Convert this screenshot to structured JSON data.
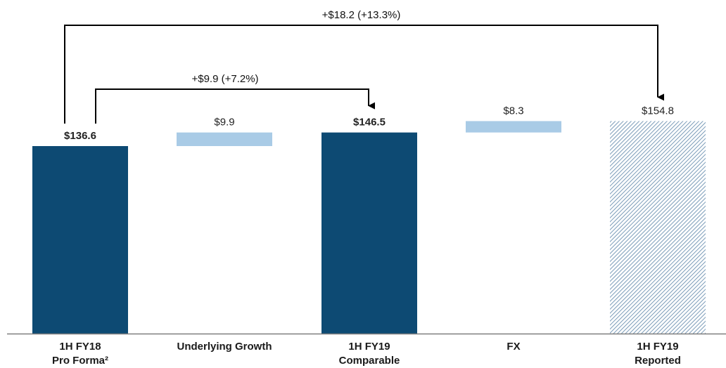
{
  "chart_data": {
    "type": "bar",
    "subtype": "waterfall",
    "title": "",
    "xlabel": "",
    "ylabel": "",
    "ylim": [
      0,
      170
    ],
    "grid": false,
    "legend": "none",
    "categories": [
      [
        "1H FY18",
        "Pro Forma²"
      ],
      [
        "Underlying Growth"
      ],
      [
        "1H FY19",
        "Comparable"
      ],
      [
        "FX"
      ],
      [
        "1H FY19",
        "Reported"
      ]
    ],
    "bars": [
      {
        "kind": "total",
        "base": 0,
        "value": 136.6,
        "label": "$136.6",
        "label_bold": true,
        "color": "#0d4a73",
        "pattern": "solid"
      },
      {
        "kind": "delta",
        "base": 136.6,
        "value": 9.9,
        "label": "$9.9",
        "label_bold": false,
        "color": "#a9cbe6",
        "pattern": "solid"
      },
      {
        "kind": "total",
        "base": 0,
        "value": 146.5,
        "label": "$146.5",
        "label_bold": true,
        "color": "#0d4a73",
        "pattern": "solid"
      },
      {
        "kind": "delta",
        "base": 146.5,
        "value": 8.3,
        "label": "$8.3",
        "label_bold": false,
        "color": "#a9cbe6",
        "pattern": "solid"
      },
      {
        "kind": "total",
        "base": 0,
        "value": 154.8,
        "label": "$154.8",
        "label_bold": false,
        "color": "#7a9bb8",
        "pattern": "hatched"
      }
    ],
    "annotations": [
      {
        "from": 0,
        "to": 2,
        "text": "+$9.9 (+7.2%)"
      },
      {
        "from": 0,
        "to": 4,
        "text": "+$18.2 (+13.3%)"
      }
    ]
  }
}
